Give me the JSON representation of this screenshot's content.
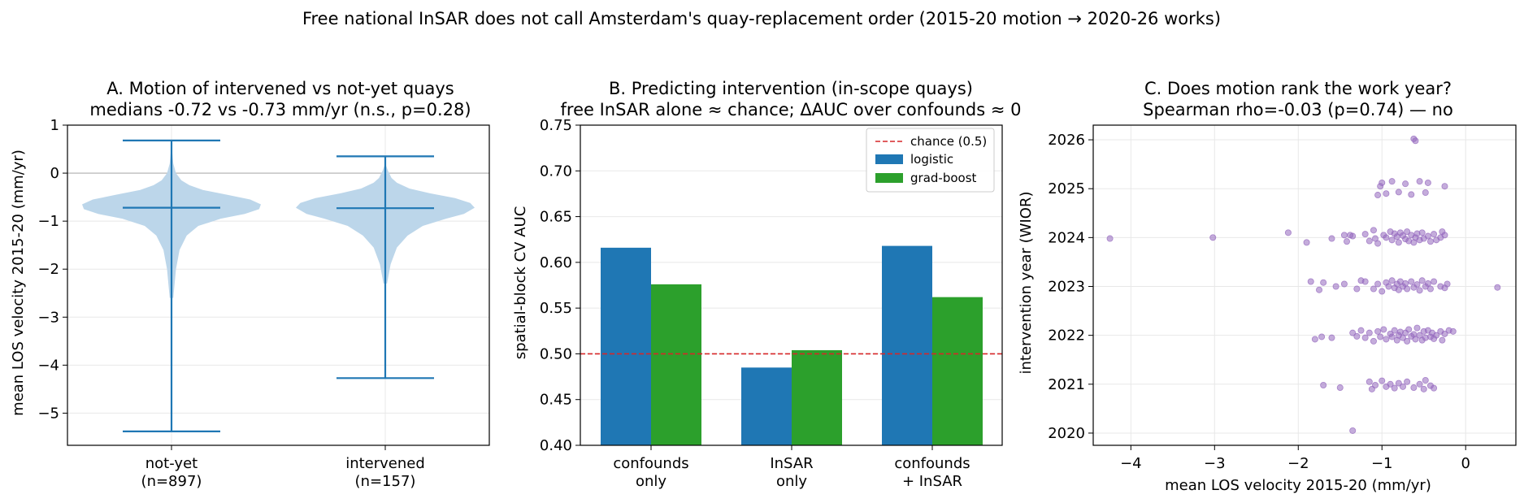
{
  "suptitle": "Free national InSAR does not call Amsterdam's quay-replacement order (2015-20 motion → 2020-26 works)",
  "colors": {
    "violin": "#bcd6ea",
    "violin_lines": "#1f77b4",
    "logistic": "#1f77b4",
    "gradboost": "#2ca02c",
    "chance": "#d62728",
    "scatter": "#9467bd",
    "grid": "#e8e8e8",
    "zero_line": "#b0b0b0"
  },
  "chart_data": [
    {
      "type": "violin",
      "title_line1": "A. Motion of intervened vs not-yet quays",
      "title_line2": "medians -0.72 vs -0.73 mm/yr (n.s., p=0.28)",
      "ylabel": "mean LOS velocity 2015-20 (mm/yr)",
      "ylim": [
        -5.67,
        1.0
      ],
      "yticks": [
        1,
        0,
        -1,
        -2,
        -3,
        -4,
        -5
      ],
      "ytick_labels": [
        "1",
        "0",
        "−1",
        "−2",
        "−3",
        "−4",
        "−5"
      ],
      "grid": true,
      "zero_line": true,
      "groups": [
        {
          "label_line1": "not-yet",
          "label_line2": "(n=897)",
          "min": -5.38,
          "median": -0.72,
          "max": 0.68,
          "density": [
            [
              -2.6,
              0.02
            ],
            [
              -2.0,
              0.05
            ],
            [
              -1.6,
              0.09
            ],
            [
              -1.3,
              0.17
            ],
            [
              -1.1,
              0.3
            ],
            [
              -0.95,
              0.55
            ],
            [
              -0.85,
              0.82
            ],
            [
              -0.75,
              0.98
            ],
            [
              -0.65,
              1.0
            ],
            [
              -0.55,
              0.88
            ],
            [
              -0.45,
              0.62
            ],
            [
              -0.35,
              0.35
            ],
            [
              -0.25,
              0.2
            ],
            [
              -0.15,
              0.11
            ],
            [
              0.0,
              0.05
            ],
            [
              0.2,
              0.02
            ],
            [
              0.6,
              0.0
            ]
          ]
        },
        {
          "label_line1": "intervened",
          "label_line2": "(n=157)",
          "min": -4.27,
          "median": -0.73,
          "max": 0.35,
          "density": [
            [
              -2.3,
              0.02
            ],
            [
              -1.9,
              0.06
            ],
            [
              -1.55,
              0.13
            ],
            [
              -1.3,
              0.25
            ],
            [
              -1.1,
              0.42
            ],
            [
              -0.95,
              0.68
            ],
            [
              -0.85,
              0.88
            ],
            [
              -0.72,
              1.0
            ],
            [
              -0.62,
              0.95
            ],
            [
              -0.52,
              0.78
            ],
            [
              -0.42,
              0.5
            ],
            [
              -0.32,
              0.27
            ],
            [
              -0.2,
              0.13
            ],
            [
              -0.1,
              0.07
            ],
            [
              0.05,
              0.03
            ],
            [
              0.2,
              0.0
            ]
          ]
        }
      ]
    },
    {
      "type": "bar",
      "title_line1": "B. Predicting intervention (in-scope quays)",
      "title_line2": "free InSAR alone ≈ chance; ΔAUC over confounds ≈ 0",
      "ylabel": "spatial-block CV AUC",
      "ylim": [
        0.4,
        0.75
      ],
      "yticks": [
        0.4,
        0.45,
        0.5,
        0.55,
        0.6,
        0.65,
        0.7,
        0.75
      ],
      "ytick_labels": [
        "0.40",
        "0.45",
        "0.50",
        "0.55",
        "0.60",
        "0.65",
        "0.70",
        "0.75"
      ],
      "grid": true,
      "chance_level": 0.5,
      "legend_position": "top-right",
      "legend": [
        "chance (0.5)",
        "logistic",
        "grad-boost"
      ],
      "categories": [
        [
          "confounds",
          "only"
        ],
        [
          "InSAR",
          "only"
        ],
        [
          "confounds",
          "+ InSAR"
        ]
      ],
      "series": [
        {
          "name": "logistic",
          "values": [
            0.616,
            0.485,
            0.618
          ]
        },
        {
          "name": "grad-boost",
          "values": [
            0.576,
            0.504,
            0.562
          ]
        }
      ]
    },
    {
      "type": "scatter",
      "title_line1": "C. Does motion rank the work year?",
      "title_line2": "Spearman rho=-0.03 (p=0.74) — no",
      "xlabel": "mean LOS velocity 2015-20 (mm/yr)",
      "ylabel": "intervention year (WIOR)",
      "xlim": [
        -4.45,
        0.6
      ],
      "ylim": [
        2019.75,
        2026.3
      ],
      "xticks": [
        -4,
        -3,
        -2,
        -1,
        0
      ],
      "xtick_labels": [
        "−4",
        "−3",
        "−2",
        "−1",
        "0"
      ],
      "yticks": [
        2020,
        2021,
        2022,
        2023,
        2024,
        2025,
        2026
      ],
      "ytick_labels": [
        "2020",
        "2021",
        "2022",
        "2023",
        "2024",
        "2025",
        "2026"
      ],
      "grid": true,
      "points": [
        [
          -0.62,
          2026.02
        ],
        [
          -0.6,
          2025.98
        ],
        [
          -1.05,
          2024.87
        ],
        [
          -1.0,
          2025.12
        ],
        [
          -0.95,
          2024.9
        ],
        [
          -0.88,
          2025.15
        ],
        [
          -0.8,
          2024.93
        ],
        [
          -0.72,
          2025.1
        ],
        [
          -0.65,
          2024.88
        ],
        [
          -0.55,
          2025.15
        ],
        [
          -0.48,
          2024.92
        ],
        [
          -0.45,
          2025.12
        ],
        [
          -0.25,
          2025.05
        ],
        [
          -1.02,
          2025.05
        ],
        [
          -4.25,
          2023.98
        ],
        [
          -3.02,
          2024.0
        ],
        [
          -2.12,
          2024.1
        ],
        [
          -1.9,
          2023.9
        ],
        [
          -1.6,
          2023.98
        ],
        [
          -1.45,
          2024.05
        ],
        [
          -1.42,
          2023.92
        ],
        [
          -1.38,
          2024.05
        ],
        [
          -1.35,
          2024.03
        ],
        [
          -1.2,
          2024.07
        ],
        [
          -1.15,
          2023.93
        ],
        [
          -1.1,
          2024.15
        ],
        [
          -1.08,
          2023.98
        ],
        [
          -1.05,
          2023.88
        ],
        [
          -0.98,
          2024.05
        ],
        [
          -0.95,
          2024.0
        ],
        [
          -0.9,
          2024.12
        ],
        [
          -0.88,
          2023.95
        ],
        [
          -0.85,
          2024.08
        ],
        [
          -0.82,
          2024.02
        ],
        [
          -0.8,
          2023.9
        ],
        [
          -0.78,
          2024.1
        ],
        [
          -0.75,
          2024.04
        ],
        [
          -0.72,
          2023.97
        ],
        [
          -0.7,
          2024.12
        ],
        [
          -0.68,
          2023.93
        ],
        [
          -0.65,
          2024.05
        ],
        [
          -0.62,
          2023.9
        ],
        [
          -0.6,
          2024.0
        ],
        [
          -0.58,
          2024.08
        ],
        [
          -0.55,
          2023.95
        ],
        [
          -0.52,
          2024.1
        ],
        [
          -0.5,
          2023.98
        ],
        [
          -0.45,
          2024.03
        ],
        [
          -0.42,
          2023.92
        ],
        [
          -0.38,
          2024.07
        ],
        [
          -0.35,
          2023.95
        ],
        [
          -0.3,
          2024.0
        ],
        [
          -0.28,
          2024.12
        ],
        [
          -0.25,
          2024.05
        ],
        [
          -1.85,
          2023.1
        ],
        [
          -1.75,
          2022.93
        ],
        [
          -1.7,
          2023.08
        ],
        [
          -1.55,
          2023.0
        ],
        [
          -1.45,
          2023.05
        ],
        [
          -1.3,
          2022.95
        ],
        [
          -1.25,
          2023.12
        ],
        [
          -1.2,
          2023.1
        ],
        [
          -1.1,
          2022.95
        ],
        [
          -1.05,
          2023.05
        ],
        [
          -1.0,
          2022.9
        ],
        [
          -0.95,
          2023.08
        ],
        [
          -0.92,
          2023.0
        ],
        [
          -0.88,
          2023.12
        ],
        [
          -0.85,
          2022.97
        ],
        [
          -0.82,
          2023.05
        ],
        [
          -0.8,
          2022.93
        ],
        [
          -0.78,
          2023.1
        ],
        [
          -0.75,
          2023.0
        ],
        [
          -0.72,
          2023.06
        ],
        [
          -0.7,
          2022.95
        ],
        [
          -0.65,
          2023.1
        ],
        [
          -0.62,
          2022.98
        ],
        [
          -0.58,
          2023.04
        ],
        [
          -0.55,
          2022.92
        ],
        [
          -0.52,
          2023.12
        ],
        [
          -0.48,
          2023.0
        ],
        [
          -0.45,
          2023.06
        ],
        [
          -0.42,
          2022.95
        ],
        [
          -0.38,
          2023.1
        ],
        [
          -0.3,
          2023.0
        ],
        [
          -0.25,
          2022.97
        ],
        [
          -0.22,
          2023.05
        ],
        [
          0.38,
          2022.98
        ],
        [
          -1.8,
          2021.92
        ],
        [
          -1.72,
          2021.97
        ],
        [
          -1.6,
          2021.95
        ],
        [
          -1.35,
          2022.05
        ],
        [
          -1.3,
          2021.98
        ],
        [
          -1.25,
          2022.1
        ],
        [
          -1.2,
          2021.95
        ],
        [
          -1.15,
          2022.05
        ],
        [
          -1.1,
          2021.88
        ],
        [
          -1.05,
          2022.08
        ],
        [
          -1.02,
          2021.97
        ],
        [
          -0.98,
          2022.12
        ],
        [
          -0.95,
          2021.92
        ],
        [
          -0.9,
          2022.03
        ],
        [
          -0.88,
          2021.97
        ],
        [
          -0.85,
          2022.1
        ],
        [
          -0.82,
          2021.9
        ],
        [
          -0.8,
          2022.0
        ],
        [
          -0.78,
          2022.07
        ],
        [
          -0.75,
          2021.95
        ],
        [
          -0.72,
          2022.05
        ],
        [
          -0.7,
          2021.88
        ],
        [
          -0.68,
          2022.12
        ],
        [
          -0.65,
          2021.98
        ],
        [
          -0.62,
          2022.02
        ],
        [
          -0.6,
          2021.92
        ],
        [
          -0.58,
          2022.15
        ],
        [
          -0.55,
          2022.0
        ],
        [
          -0.52,
          2021.9
        ],
        [
          -0.5,
          2022.08
        ],
        [
          -0.48,
          2021.95
        ],
        [
          -0.45,
          2022.1
        ],
        [
          -0.42,
          2021.97
        ],
        [
          -0.4,
          2022.05
        ],
        [
          -0.38,
          2021.93
        ],
        [
          -0.35,
          2022.0
        ],
        [
          -0.3,
          2022.08
        ],
        [
          -0.28,
          2021.9
        ],
        [
          -0.25,
          2022.03
        ],
        [
          -0.2,
          2022.1
        ],
        [
          -0.15,
          2022.08
        ],
        [
          -1.7,
          2020.98
        ],
        [
          -1.5,
          2020.93
        ],
        [
          -1.15,
          2021.05
        ],
        [
          -1.12,
          2020.9
        ],
        [
          -1.08,
          2020.98
        ],
        [
          -1.0,
          2021.07
        ],
        [
          -0.95,
          2020.95
        ],
        [
          -0.9,
          2021.0
        ],
        [
          -0.85,
          2020.92
        ],
        [
          -0.8,
          2021.02
        ],
        [
          -0.75,
          2020.95
        ],
        [
          -0.7,
          2021.05
        ],
        [
          -0.62,
          2020.93
        ],
        [
          -0.55,
          2021.0
        ],
        [
          -0.5,
          2020.9
        ],
        [
          -0.48,
          2021.08
        ],
        [
          -0.42,
          2020.97
        ],
        [
          -0.38,
          2020.92
        ],
        [
          -1.35,
          2020.05
        ]
      ]
    }
  ]
}
